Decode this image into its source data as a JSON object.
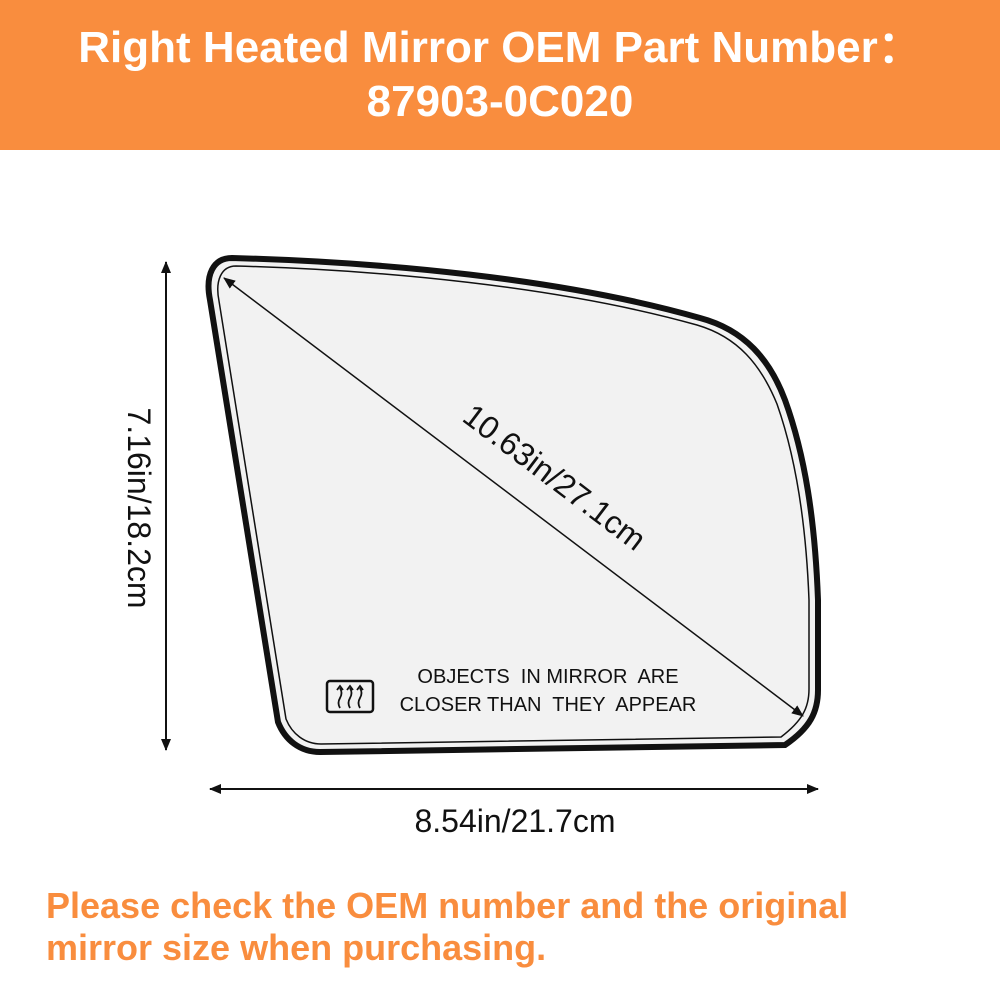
{
  "banner": {
    "line1": "Right Heated Mirror OEM Part Number：",
    "line2": "87903-0C020"
  },
  "dimensions": {
    "height_label": "7.16in/18.2cm",
    "diagonal_label": "10.63in/27.1cm",
    "width_label": "8.54in/21.7cm"
  },
  "mirror": {
    "warning_line1": "OBJECTS  IN MIRROR  ARE",
    "warning_line2": "CLOSER THAN  THEY  APPEAR",
    "heater_icon": "defrost-heater-icon"
  },
  "note": {
    "line1": "Please check the OEM number and the original",
    "line2": "mirror size when purchasing."
  },
  "colors": {
    "accent": "#f98d3e",
    "glass": "#f2f2f2",
    "outline": "#111111"
  }
}
